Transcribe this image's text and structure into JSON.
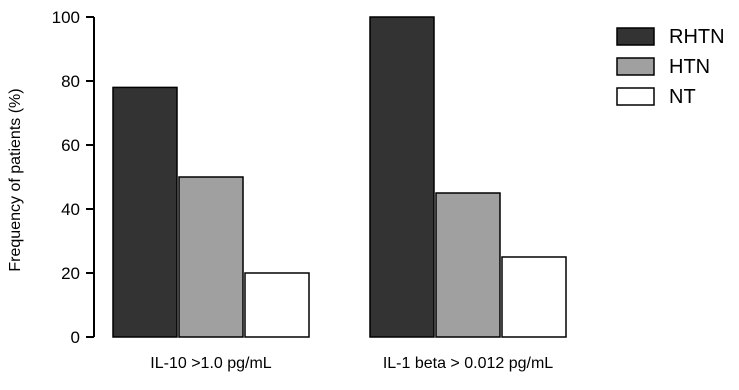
{
  "chart_data": {
    "type": "bar",
    "title": "",
    "xlabel": "",
    "ylabel": "Frequency of patients (%)",
    "ylim": [
      0,
      100
    ],
    "yticks": [
      0,
      20,
      40,
      60,
      80,
      100
    ],
    "categories": [
      "IL-10 >1.0 pg/mL",
      "IL-1 beta > 0.012 pg/mL"
    ],
    "series": [
      {
        "name": "RHTN",
        "color": "#333333",
        "values": [
          78,
          100
        ]
      },
      {
        "name": "HTN",
        "color": "#a0a0a0",
        "values": [
          50,
          45
        ]
      },
      {
        "name": "NT",
        "color": "#ffffff",
        "values": [
          20,
          25
        ]
      }
    ],
    "legend": "right",
    "grid": false
  }
}
